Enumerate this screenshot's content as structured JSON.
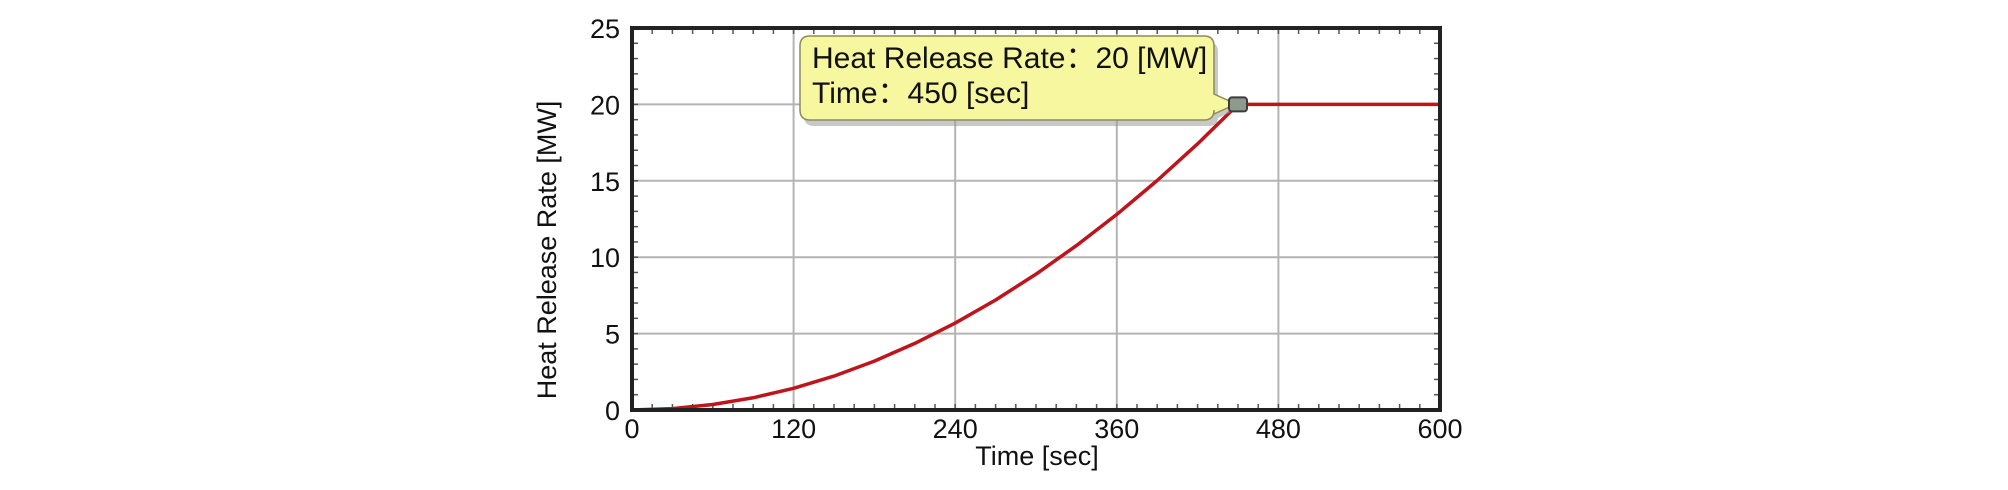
{
  "chart_data": {
    "type": "line",
    "title": "",
    "xlabel": "Time [sec]",
    "ylabel": "Heat Release Rate [MW]",
    "xlim": [
      0,
      600
    ],
    "ylim": [
      0,
      25
    ],
    "x_ticks": [
      "0",
      "120",
      "240",
      "360",
      "480",
      "600"
    ],
    "y_ticks": [
      "0",
      "5",
      "10",
      "15",
      "20",
      "25"
    ],
    "grid": true,
    "legend": "none",
    "series": [
      {
        "color": "#c0141c",
        "x": [
          0,
          30,
          60,
          90,
          120,
          150,
          180,
          210,
          240,
          270,
          300,
          330,
          360,
          390,
          420,
          450,
          480,
          510,
          540,
          570,
          600
        ],
        "y": [
          0,
          0.09,
          0.36,
          0.8,
          1.42,
          2.22,
          3.2,
          4.36,
          5.69,
          7.2,
          8.89,
          10.76,
          12.8,
          15.02,
          17.42,
          20,
          20,
          20,
          20,
          20,
          20
        ]
      }
    ],
    "annotation": {
      "line1": "Heat Release Rate：20 [MW]",
      "line2": "Time：450 [sec]",
      "x": 450,
      "y": 20
    },
    "colors": {
      "line": "#c0141c",
      "tooltip_fill": "#f7f7a0",
      "grid": "#b4b4b4",
      "frame": "#222222"
    }
  }
}
